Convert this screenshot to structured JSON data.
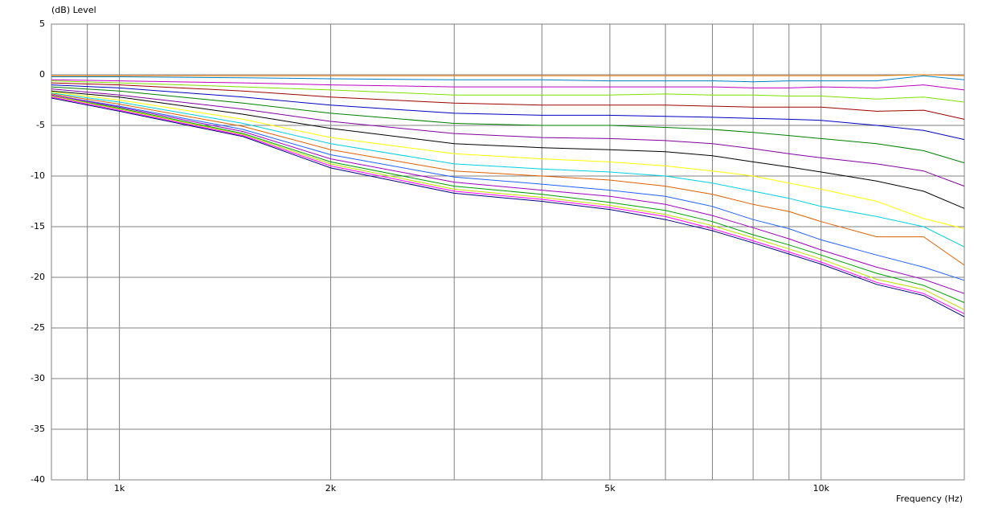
{
  "chart_data": {
    "type": "line",
    "y_axis_label": "(dB)  Level",
    "x_axis_label": "Frequency  (Hz)",
    "x_log_scale": true,
    "grid": true,
    "xlim": [
      800,
      16000
    ],
    "ylim": [
      -40,
      5
    ],
    "yticks": [
      5,
      0,
      -5,
      -10,
      -15,
      -20,
      -25,
      -30,
      -35,
      -40
    ],
    "xticks": [
      {
        "value": 1000,
        "label": "1k"
      },
      {
        "value": 2000,
        "label": "2k"
      },
      {
        "value": 5000,
        "label": "5k"
      },
      {
        "value": 10000,
        "label": "10k"
      }
    ],
    "x_minor_grid": [
      900,
      3000,
      4000,
      6000,
      7000,
      8000,
      9000
    ],
    "x": [
      800,
      1000,
      1500,
      2000,
      3000,
      4000,
      5000,
      6000,
      7000,
      8000,
      9000,
      10000,
      12000,
      14000,
      16000
    ],
    "series": [
      {
        "color": "#ff8000",
        "values": [
          -0.1,
          -0.1,
          -0.1,
          -0.1,
          -0.1,
          -0.1,
          -0.1,
          -0.1,
          -0.1,
          -0.1,
          -0.1,
          -0.1,
          -0.1,
          0,
          -0.1
        ]
      },
      {
        "color": "#0080c0",
        "values": [
          -0.2,
          -0.2,
          -0.3,
          -0.4,
          -0.5,
          -0.5,
          -0.6,
          -0.6,
          -0.6,
          -0.7,
          -0.6,
          -0.6,
          -0.6,
          -0.1,
          -0.5
        ]
      },
      {
        "color": "#c000c0",
        "values": [
          -0.5,
          -0.6,
          -0.8,
          -1.0,
          -1.2,
          -1.2,
          -1.2,
          -1.2,
          -1.2,
          -1.3,
          -1.3,
          -1.2,
          -1.3,
          -1.0,
          -1.5
        ]
      },
      {
        "color": "#80e000",
        "values": [
          -0.6,
          -0.8,
          -1.2,
          -1.5,
          -2.0,
          -2.0,
          -2.0,
          -1.9,
          -2.0,
          -2.0,
          -2.1,
          -2.1,
          -2.4,
          -2.2,
          -2.7
        ]
      },
      {
        "color": "#a00000",
        "values": [
          -0.8,
          -1.0,
          -1.6,
          -2.2,
          -2.8,
          -3.0,
          -3.0,
          -3.0,
          -3.1,
          -3.2,
          -3.2,
          -3.2,
          -3.6,
          -3.5,
          -4.4
        ]
      },
      {
        "color": "#0000c0",
        "values": [
          -1.0,
          -1.3,
          -2.2,
          -3.0,
          -3.8,
          -4.0,
          -4.0,
          -4.1,
          -4.2,
          -4.3,
          -4.4,
          -4.5,
          -5.0,
          -5.5,
          -6.4
        ]
      },
      {
        "color": "#008000",
        "values": [
          -1.2,
          -1.6,
          -2.8,
          -3.8,
          -4.8,
          -5.0,
          -5.0,
          -5.2,
          -5.4,
          -5.7,
          -6.0,
          -6.3,
          -6.8,
          -7.5,
          -8.7
        ]
      },
      {
        "color": "#8000a0",
        "values": [
          -1.4,
          -2.0,
          -3.4,
          -4.6,
          -5.8,
          -6.2,
          -6.3,
          -6.5,
          -6.8,
          -7.3,
          -7.8,
          -8.2,
          -8.8,
          -9.5,
          -11.0
        ]
      },
      {
        "color": "#000000",
        "values": [
          -1.6,
          -2.2,
          -3.9,
          -5.3,
          -6.8,
          -7.2,
          -7.4,
          -7.6,
          -8.0,
          -8.6,
          -9.1,
          -9.6,
          -10.5,
          -11.5,
          -13.2
        ]
      },
      {
        "color": "#ffff00",
        "values": [
          -1.7,
          -2.5,
          -4.4,
          -6.2,
          -7.8,
          -8.3,
          -8.6,
          -9.0,
          -9.5,
          -10.0,
          -10.7,
          -11.3,
          -12.5,
          -14.2,
          -15.2
        ]
      },
      {
        "color": "#00d0e0",
        "values": [
          -1.8,
          -2.7,
          -4.8,
          -6.8,
          -8.8,
          -9.3,
          -9.6,
          -10.0,
          -10.7,
          -11.5,
          -12.2,
          -13.0,
          -14.0,
          -15.0,
          -17.0
        ]
      },
      {
        "color": "#e06000",
        "values": [
          -1.9,
          -2.9,
          -5.1,
          -7.4,
          -9.5,
          -10.0,
          -10.4,
          -11.0,
          -11.8,
          -12.8,
          -13.5,
          -14.5,
          -16.0,
          -16.0,
          -18.8
        ]
      },
      {
        "color": "#2060ff",
        "values": [
          -2.0,
          -3.1,
          -5.4,
          -7.9,
          -10.1,
          -10.8,
          -11.4,
          -12.0,
          -13.0,
          -14.3,
          -15.2,
          -16.3,
          -17.8,
          -19.0,
          -20.3
        ]
      },
      {
        "color": "#a000c0",
        "values": [
          -2.0,
          -3.2,
          -5.6,
          -8.3,
          -10.6,
          -11.4,
          -12.0,
          -12.8,
          -13.9,
          -15.1,
          -16.2,
          -17.3,
          -19.0,
          -20.2,
          -21.6
        ]
      },
      {
        "color": "#00a000",
        "values": [
          -2.1,
          -3.3,
          -5.8,
          -8.6,
          -11.0,
          -11.8,
          -12.6,
          -13.4,
          -14.5,
          -15.8,
          -16.8,
          -17.8,
          -19.6,
          -20.8,
          -22.5
        ]
      },
      {
        "color": "#c0e000",
        "values": [
          -2.1,
          -3.4,
          -5.9,
          -8.8,
          -11.3,
          -12.1,
          -12.9,
          -13.8,
          -14.9,
          -16.1,
          -17.2,
          -18.2,
          -20.2,
          -21.2,
          -23.2
        ]
      },
      {
        "color": "#ff00ff",
        "values": [
          -2.2,
          -3.5,
          -6.0,
          -9.0,
          -11.5,
          -12.3,
          -13.1,
          -14.0,
          -15.2,
          -16.4,
          -17.5,
          -18.5,
          -20.5,
          -21.6,
          -23.6
        ]
      },
      {
        "color": "#000080",
        "values": [
          -2.3,
          -3.6,
          -6.1,
          -9.2,
          -11.7,
          -12.5,
          -13.3,
          -14.3,
          -15.4,
          -16.6,
          -17.7,
          -18.7,
          -20.7,
          -21.8,
          -23.9
        ]
      }
    ]
  }
}
